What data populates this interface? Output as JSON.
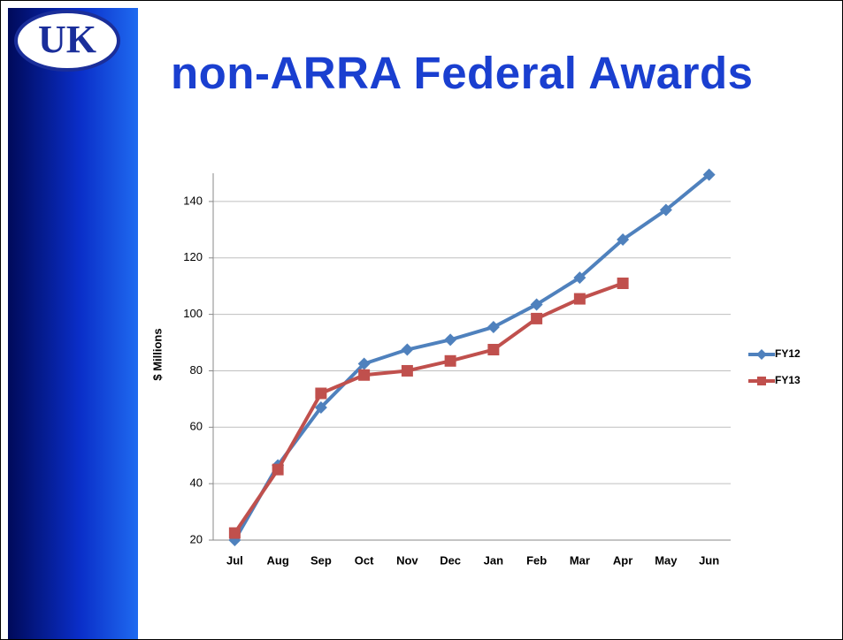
{
  "logo": "UK",
  "chart_data": {
    "type": "line",
    "title": "non-ARRA Federal Awards",
    "ylabel": "$ Millions",
    "categories": [
      "Jul",
      "Aug",
      "Sep",
      "Oct",
      "Nov",
      "Dec",
      "Jan",
      "Feb",
      "Mar",
      "Apr",
      "May",
      "Jun"
    ],
    "series": [
      {
        "name": "FY12",
        "color": "#4f81bd",
        "marker": "diamond",
        "values": [
          20,
          46.5,
          67,
          82.5,
          87.5,
          91,
          95.5,
          103.5,
          113,
          126.5,
          137,
          149.5
        ]
      },
      {
        "name": "FY13",
        "color": "#c0504d",
        "marker": "square",
        "values": [
          22.5,
          45,
          72,
          78.5,
          80,
          83.5,
          87.5,
          98.5,
          105.5,
          111,
          null,
          null
        ]
      }
    ],
    "ylim": [
      20,
      150
    ],
    "yticks": [
      20,
      40,
      60,
      80,
      100,
      120,
      140
    ],
    "grid": true,
    "legend": "right"
  }
}
